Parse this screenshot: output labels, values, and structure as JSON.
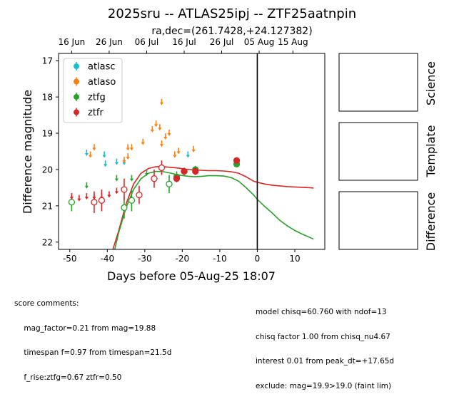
{
  "chart_data": {
    "type": "scatter",
    "title": "2025sru -- ATLAS25ipj -- ZTF25aatnpin",
    "subtitle": "ra,dec=(261.7428,+24.127382)",
    "xlabel": "Days before 05-Aug-25 18:07",
    "ylabel": "Difference magnitude",
    "xlim": [
      -53,
      18
    ],
    "ylim": [
      22.2,
      16.8
    ],
    "y_inverted": true,
    "xticks": [
      -50,
      -40,
      -30,
      -20,
      -10,
      0,
      10
    ],
    "yticks": [
      17,
      18,
      19,
      20,
      21,
      22
    ],
    "top_axis_ticks": [
      {
        "x": -49.5,
        "label": "16 Jun"
      },
      {
        "x": -39.5,
        "label": "26 Jun"
      },
      {
        "x": -29.5,
        "label": "06 Jul"
      },
      {
        "x": -19.5,
        "label": "16 Jul"
      },
      {
        "x": -9.5,
        "label": "26 Jul"
      },
      {
        "x": 0.5,
        "label": "05 Aug"
      },
      {
        "x": 9.5,
        "label": "15 Aug"
      }
    ],
    "vline_x": 0,
    "legend": {
      "location": "upper-left",
      "entries": [
        {
          "name": "atlasc",
          "color": "#17becf"
        },
        {
          "name": "atlaso",
          "color": "#ff7f0e"
        },
        {
          "name": "ztfg",
          "color": "#2ca02c"
        },
        {
          "name": "ztfr",
          "color": "#d62728"
        }
      ]
    },
    "series": [
      {
        "name": "atlasc",
        "color": "#17becf",
        "upper_limits": [
          {
            "x": -45.5,
            "y": 19.45
          },
          {
            "x": -40.8,
            "y": 19.5
          },
          {
            "x": -40.5,
            "y": 19.75
          },
          {
            "x": -37.5,
            "y": 19.7
          },
          {
            "x": -18.5,
            "y": 19.5
          },
          {
            "x": -35.5,
            "y": 19.7
          }
        ],
        "points": []
      },
      {
        "name": "atlaso",
        "color": "#ff7f0e",
        "upper_limits": [
          {
            "x": -44.5,
            "y": 19.5
          },
          {
            "x": -43.5,
            "y": 19.3
          },
          {
            "x": -35.5,
            "y": 19.65
          },
          {
            "x": -34.5,
            "y": 19.55
          },
          {
            "x": -34.5,
            "y": 19.3
          },
          {
            "x": -33.5,
            "y": 19.3
          },
          {
            "x": -30.5,
            "y": 19.15
          },
          {
            "x": -28.0,
            "y": 18.8
          },
          {
            "x": -27.0,
            "y": 18.65
          },
          {
            "x": -26.0,
            "y": 18.75
          },
          {
            "x": -25.5,
            "y": 18.05
          },
          {
            "x": -24.5,
            "y": 19.0
          },
          {
            "x": -23.5,
            "y": 18.9
          },
          {
            "x": -22.0,
            "y": 19.5
          },
          {
            "x": -21.0,
            "y": 19.4
          },
          {
            "x": -17.0,
            "y": 19.35
          },
          {
            "x": -25.5,
            "y": 19.2
          }
        ],
        "points": []
      },
      {
        "name": "ztfg",
        "color": "#2ca02c",
        "upper_limits": [
          {
            "x": -45.5,
            "y": 20.35
          },
          {
            "x": -37.5,
            "y": 20.15
          },
          {
            "x": -33.5,
            "y": 20.15
          },
          {
            "x": -29.5,
            "y": 20.0
          }
        ],
        "points": [
          {
            "x": -49.5,
            "y": 20.9,
            "err": 0.25,
            "filled": false
          },
          {
            "x": -35.5,
            "y": 21.05,
            "err": 0.3,
            "filled": false
          },
          {
            "x": -33.5,
            "y": 20.85,
            "err": 0.3,
            "filled": false
          },
          {
            "x": -23.5,
            "y": 20.4,
            "err": 0.25,
            "filled": false
          },
          {
            "x": -21.5,
            "y": 20.2,
            "err": 0.15,
            "filled": true
          },
          {
            "x": -19.5,
            "y": 20.05,
            "err": 0.1,
            "filled": true
          },
          {
            "x": -16.5,
            "y": 20.0,
            "err": 0.1,
            "filled": true
          },
          {
            "x": -5.5,
            "y": 19.85,
            "err": 0.07,
            "filled": true
          }
        ]
      },
      {
        "name": "ztfr",
        "color": "#d62728",
        "upper_limits": [
          {
            "x": -49.5,
            "y": 20.65
          },
          {
            "x": -47.5,
            "y": 20.7
          },
          {
            "x": -45.5,
            "y": 20.65
          },
          {
            "x": -43.5,
            "y": 20.65
          },
          {
            "x": -41.5,
            "y": 20.65
          },
          {
            "x": -39.5,
            "y": 20.6
          },
          {
            "x": -37.5,
            "y": 20.5
          }
        ],
        "points": [
          {
            "x": -43.5,
            "y": 20.9,
            "err": 0.3,
            "filled": false
          },
          {
            "x": -41.5,
            "y": 20.85,
            "err": 0.3,
            "filled": false
          },
          {
            "x": -35.5,
            "y": 20.55,
            "err": 0.3,
            "filled": false
          },
          {
            "x": -31.5,
            "y": 20.7,
            "err": 0.25,
            "filled": false
          },
          {
            "x": -27.5,
            "y": 20.25,
            "err": 0.25,
            "filled": false
          },
          {
            "x": -25.5,
            "y": 19.95,
            "err": 0.2,
            "filled": false
          },
          {
            "x": -21.5,
            "y": 20.25,
            "err": 0.1,
            "filled": true
          },
          {
            "x": -19.5,
            "y": 20.05,
            "err": 0.1,
            "filled": true
          },
          {
            "x": -16.5,
            "y": 20.05,
            "err": 0.1,
            "filled": true
          },
          {
            "x": -5.5,
            "y": 19.75,
            "err": 0.07,
            "filled": true
          }
        ]
      }
    ],
    "model_curves": [
      {
        "name": "ztfr",
        "color": "#d62728",
        "x": [
          -38.5,
          -37,
          -35,
          -33,
          -31,
          -29,
          -27,
          -25,
          -23,
          -21,
          -19,
          -17,
          -15,
          -13,
          -11,
          -9,
          -7,
          -5,
          -3,
          -1,
          0,
          2,
          4,
          6,
          8,
          10,
          12,
          14,
          15
        ],
        "y": [
          22.2,
          21.7,
          20.95,
          20.4,
          20.1,
          19.97,
          19.92,
          19.92,
          19.94,
          19.96,
          19.99,
          20.01,
          20.02,
          20.03,
          20.03,
          20.04,
          20.06,
          20.1,
          20.2,
          20.32,
          20.35,
          20.4,
          20.43,
          20.45,
          20.47,
          20.48,
          20.49,
          20.5,
          20.51
        ]
      },
      {
        "name": "ztfg",
        "color": "#2ca02c",
        "x": [
          -38.0,
          -37,
          -35,
          -33,
          -31,
          -29,
          -27,
          -25,
          -23,
          -21,
          -19,
          -17,
          -15,
          -13,
          -11,
          -9,
          -7,
          -5,
          -3,
          -1,
          0,
          2,
          4,
          6,
          8,
          10,
          12,
          14,
          15
        ],
        "y": [
          22.2,
          21.75,
          21.05,
          20.55,
          20.25,
          20.1,
          20.05,
          20.06,
          20.1,
          20.15,
          20.18,
          20.2,
          20.19,
          20.17,
          20.17,
          20.18,
          20.22,
          20.32,
          20.5,
          20.7,
          20.82,
          21.02,
          21.2,
          21.4,
          21.55,
          21.68,
          21.78,
          21.87,
          21.92
        ]
      }
    ]
  },
  "stamp_labels": {
    "science": "Science",
    "template": "Template",
    "difference": "Difference"
  },
  "comments": {
    "left": [
      "score comments:",
      "    mag_factor=0.21 from mag=19.88",
      "    timespan f=0.97 from timespan=21.5d",
      "    f_rise:ztfg=0.67 ztfr=0.50"
    ],
    "right": [
      "model chisq=60.760 with ndof=13",
      "chisq factor 1.00 from chisq_nu4.67",
      "interest 0.01 from peak_dt=+17.65d",
      "exclude: mag=19.9>19.0 (faint lim)"
    ]
  }
}
